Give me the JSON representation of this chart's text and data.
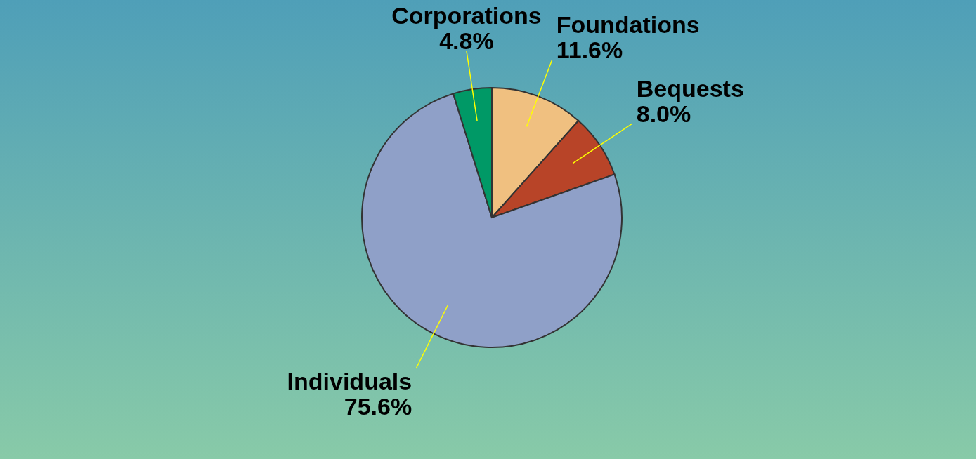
{
  "chart_data": {
    "type": "pie",
    "categories": [
      "Foundations",
      "Bequests",
      "Individuals",
      "Corporations"
    ],
    "values": [
      11.6,
      8.0,
      75.6,
      4.8
    ],
    "colors": [
      "#f0c080",
      "#b84428",
      "#8fa0c8",
      "#009966"
    ],
    "value_labels": [
      "11.6%",
      "8.0%",
      "75.6%",
      "4.8%"
    ]
  }
}
